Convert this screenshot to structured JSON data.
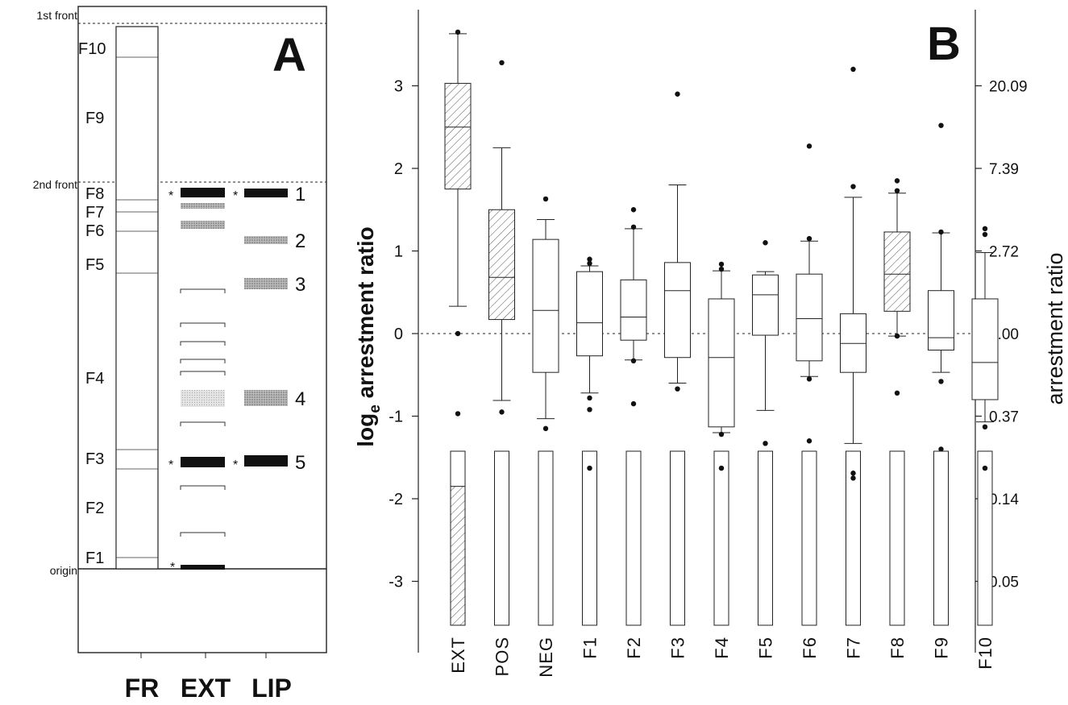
{
  "panel_a": {
    "label": "A",
    "front_labels": {
      "first": "1st front",
      "second": "2nd front",
      "origin": "origin"
    },
    "fraction_labels": [
      "F10",
      "F9",
      "F8",
      "F7",
      "F6",
      "F5",
      "F4",
      "F3",
      "F2",
      "F1"
    ],
    "band_numbers": [
      "1",
      "2",
      "3",
      "4",
      "5"
    ],
    "star": "*",
    "lane_labels": [
      "FR",
      "EXT",
      "LIP"
    ]
  },
  "chart_data": {
    "type": "box",
    "panel_label": "B",
    "ylabel_left": "log",
    "ylabel_left_sub": "e",
    "ylabel_left_rest": " arrestment ratio",
    "ylabel_right": "arrestment ratio",
    "ylim": [
      -3.6,
      3.9
    ],
    "yticks_left": [
      "3",
      "2",
      "1",
      "0",
      "-1",
      "-2",
      "-3"
    ],
    "yticks_left_values": [
      3,
      2,
      1,
      0,
      -1,
      -2,
      -3
    ],
    "yticks_right": [
      "20.09",
      "7.39",
      "2.72",
      "1.00",
      "0.37",
      "0.14",
      "0.05"
    ],
    "reference_line": 0,
    "categories": [
      "EXT",
      "POS",
      "NEG",
      "F1",
      "F2",
      "F3",
      "F4",
      "F5",
      "F6",
      "F7",
      "F8",
      "F9",
      "F10"
    ],
    "boxes": [
      {
        "q1": 1.75,
        "median": 2.5,
        "q3": 3.03,
        "whisker_low": 0.33,
        "whisker_high": 3.63,
        "outliers": [
          3.65,
          0.0,
          -0.97
        ],
        "hatched": true,
        "lower_bar_split": -1.85
      },
      {
        "q1": 0.17,
        "median": 0.68,
        "q3": 1.5,
        "whisker_low": -0.81,
        "whisker_high": 2.25,
        "outliers": [
          3.28,
          -0.95
        ],
        "hatched": true
      },
      {
        "q1": -0.47,
        "median": 0.28,
        "q3": 1.14,
        "whisker_low": -1.03,
        "whisker_high": 1.38,
        "outliers": [
          1.63,
          -1.15
        ],
        "hatched": false
      },
      {
        "q1": -0.27,
        "median": 0.13,
        "q3": 0.75,
        "whisker_low": -0.72,
        "whisker_high": 0.82,
        "outliers": [
          0.9,
          0.85,
          -0.78,
          -0.92,
          -1.63
        ],
        "hatched": false
      },
      {
        "q1": -0.08,
        "median": 0.2,
        "q3": 0.65,
        "whisker_low": -0.32,
        "whisker_high": 1.27,
        "outliers": [
          1.5,
          1.29,
          -0.33,
          -0.85
        ],
        "hatched": false
      },
      {
        "q1": -0.29,
        "median": 0.52,
        "q3": 0.86,
        "whisker_low": -0.6,
        "whisker_high": 1.8,
        "outliers": [
          2.9,
          -0.67
        ],
        "hatched": false
      },
      {
        "q1": -1.13,
        "median": -0.29,
        "q3": 0.42,
        "whisker_low": -1.2,
        "whisker_high": 0.76,
        "outliers": [
          0.84,
          0.78,
          -1.22,
          -1.63
        ],
        "hatched": false
      },
      {
        "q1": -0.02,
        "median": 0.47,
        "q3": 0.71,
        "whisker_low": -0.93,
        "whisker_high": 0.75,
        "outliers": [
          1.1,
          -1.33
        ],
        "hatched": false
      },
      {
        "q1": -0.33,
        "median": 0.18,
        "q3": 0.72,
        "whisker_low": -0.52,
        "whisker_high": 1.12,
        "outliers": [
          2.27,
          1.15,
          -0.55,
          -1.3
        ],
        "hatched": false
      },
      {
        "q1": -0.47,
        "median": -0.12,
        "q3": 0.24,
        "whisker_low": -1.33,
        "whisker_high": 1.65,
        "outliers": [
          3.2,
          1.78,
          -1.69,
          -1.75
        ],
        "hatched": false
      },
      {
        "q1": 0.27,
        "median": 0.72,
        "q3": 1.23,
        "whisker_low": -0.03,
        "whisker_high": 1.7,
        "outliers": [
          1.85,
          1.73,
          -0.03,
          -0.72
        ],
        "hatched": true
      },
      {
        "q1": -0.2,
        "median": -0.05,
        "q3": 0.52,
        "whisker_low": -0.47,
        "whisker_high": 1.22,
        "outliers": [
          2.52,
          1.23,
          -0.58,
          -1.4
        ],
        "hatched": false
      },
      {
        "q1": -0.8,
        "median": -0.35,
        "q3": 0.42,
        "whisker_low": -1.07,
        "whisker_high": 0.98,
        "outliers": [
          1.27,
          1.2,
          -1.13,
          -1.63
        ],
        "hatched": false
      }
    ]
  }
}
